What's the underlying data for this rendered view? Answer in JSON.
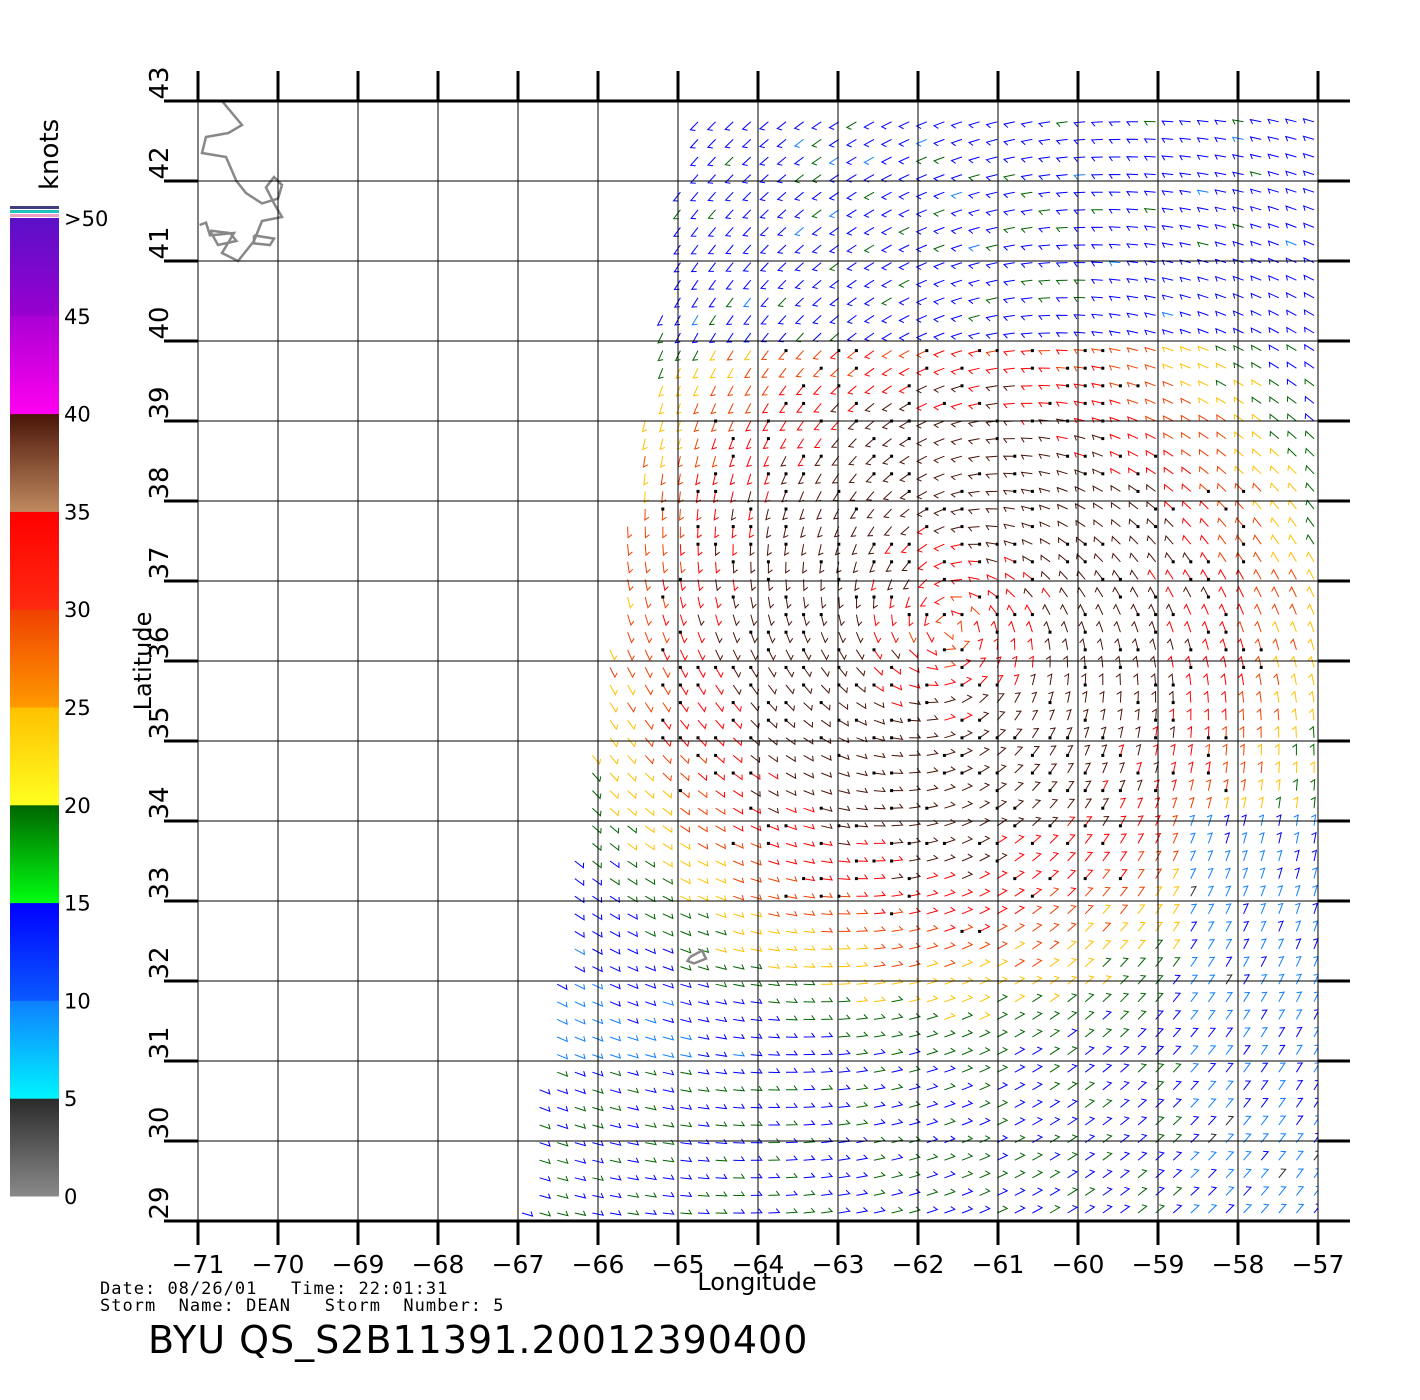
{
  "colorbar": {
    "title": "knots",
    "labels": [
      ">50",
      "45",
      "40",
      "35",
      "30",
      "25",
      "20",
      "15",
      "10",
      "5",
      "0"
    ],
    "bands": [
      {
        "from": 0,
        "to": 5,
        "top": "#2a2a2a",
        "bottom": "#8a8a8a"
      },
      {
        "from": 5,
        "to": 10,
        "top": "#0f7fff",
        "bottom": "#00f4ff"
      },
      {
        "from": 10,
        "to": 15,
        "top": "#0000ff",
        "bottom": "#0a5aff"
      },
      {
        "from": 15,
        "to": 20,
        "top": "#006400",
        "bottom": "#00ff10"
      },
      {
        "from": 20,
        "to": 25,
        "top": "#ffc000",
        "bottom": "#ffff20"
      },
      {
        "from": 25,
        "to": 30,
        "top": "#f04000",
        "bottom": "#ff9a00"
      },
      {
        "from": 30,
        "to": 35,
        "top": "#ff0000",
        "bottom": "#ff2a10"
      },
      {
        "from": 35,
        "to": 40,
        "top": "#4a1408",
        "bottom": "#c08a60"
      },
      {
        "from": 40,
        "to": 45,
        "top": "#aa00d4",
        "bottom": "#ff00f0"
      },
      {
        "from": 45,
        "to": 50,
        "top": "#5a10c8",
        "bottom": "#9a00d0"
      }
    ],
    "overflow_colors": [
      "#f0a0c8",
      "#20c0c0",
      "#404080"
    ]
  },
  "axes": {
    "xlabel": "Longitude",
    "ylabel": "Latitude",
    "lon_range": [
      -71,
      -57
    ],
    "lat_range": [
      29,
      43
    ],
    "x_ticks": [
      -71,
      -70,
      -69,
      -68,
      -67,
      -66,
      -65,
      -64,
      -63,
      -62,
      -61,
      -60,
      -59,
      -58,
      -57
    ],
    "x_tick_labels": [
      "−71",
      "−70",
      "−69",
      "−68",
      "−67",
      "−66",
      "−65",
      "−64",
      "−63",
      "−62",
      "−61",
      "−60",
      "−59",
      "−58",
      "−57"
    ],
    "y_ticks": [
      29,
      30,
      31,
      32,
      33,
      34,
      35,
      36,
      37,
      38,
      39,
      40,
      41,
      42,
      43
    ],
    "y_tick_labels": [
      "29",
      "30",
      "31",
      "32",
      "33",
      "34",
      "35",
      "36",
      "37",
      "38",
      "39",
      "40",
      "41",
      "42",
      "43"
    ],
    "grid": true
  },
  "swath": {
    "corners_lonlat": [
      [
        -64.8,
        43
      ],
      [
        -57,
        43
      ],
      [
        -57,
        29
      ],
      [
        -67,
        29
      ]
    ]
  },
  "storm": {
    "center_lonlat": [
      -61.6,
      36.4
    ]
  },
  "coastlines": {
    "cape_cod": [
      [
        -70.7,
        43
      ],
      [
        -70.55,
        42.82
      ],
      [
        -70.45,
        42.7
      ],
      [
        -70.62,
        42.6
      ],
      [
        -70.9,
        42.55
      ],
      [
        -70.95,
        42.35
      ],
      [
        -70.65,
        42.3
      ],
      [
        -70.52,
        42.0
      ],
      [
        -70.4,
        41.85
      ],
      [
        -70.2,
        41.72
      ],
      [
        -70.0,
        41.78
      ],
      [
        -69.95,
        41.95
      ],
      [
        -70.05,
        42.05
      ],
      [
        -70.15,
        41.92
      ],
      [
        -70.05,
        41.72
      ],
      [
        -69.95,
        41.55
      ],
      [
        -70.2,
        41.5
      ],
      [
        -70.3,
        41.25
      ],
      [
        -70.5,
        41.0
      ],
      [
        -70.7,
        41.1
      ],
      [
        -70.55,
        41.35
      ],
      [
        -70.85,
        41.32
      ],
      [
        -70.9,
        41.48
      ],
      [
        -70.98,
        41.45
      ]
    ],
    "islands": [
      [
        [
          -70.85,
          41.38
        ],
        [
          -70.6,
          41.35
        ],
        [
          -70.52,
          41.25
        ],
        [
          -70.75,
          41.2
        ],
        [
          -70.85,
          41.38
        ]
      ],
      [
        [
          -70.3,
          41.32
        ],
        [
          -70.05,
          41.28
        ],
        [
          -70.1,
          41.2
        ],
        [
          -70.3,
          41.22
        ],
        [
          -70.3,
          41.32
        ]
      ]
    ],
    "bermuda": [
      [
        -64.85,
        32.3
      ],
      [
        -64.7,
        32.38
      ],
      [
        -64.65,
        32.28
      ],
      [
        -64.8,
        32.22
      ],
      [
        -64.88,
        32.25
      ],
      [
        -64.85,
        32.3
      ]
    ]
  },
  "footer": {
    "date_label": "Date:",
    "date": "08/26/01",
    "time_label": "Time:",
    "time": "22:01:31",
    "storm_name_label": "Storm  Name:",
    "storm_name": "DEAN",
    "storm_number_label": "Storm  Number:",
    "storm_number": "5",
    "file_title": "BYU  QS_S2B11391.20012390400"
  }
}
